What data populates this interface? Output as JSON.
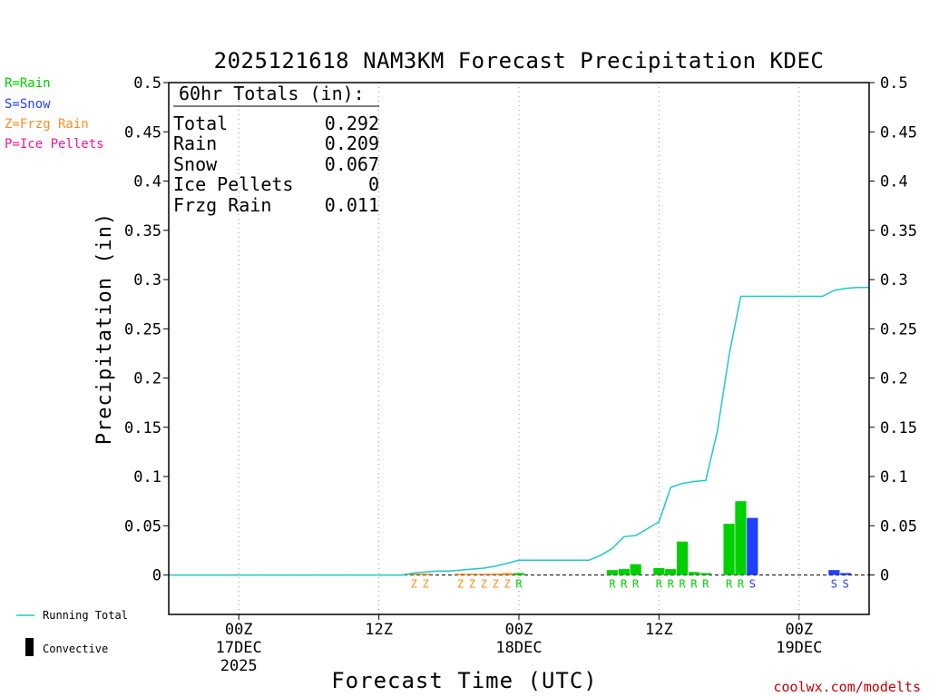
{
  "chart_data": {
    "type": "bar",
    "title": "2025121618 NAM3KM Forecast Precipitation KDEC",
    "xlabel": "Forecast Time (UTC)",
    "ylabel": "Precipitation (in)",
    "ylim": [
      -0.04,
      0.5
    ],
    "y_ticks": [
      "0",
      "0.05",
      "0.1",
      "0.15",
      "0.2",
      "0.25",
      "0.3",
      "0.35",
      "0.4",
      "0.45",
      "0.5"
    ],
    "x_ticks": [
      {
        "line1": "00Z",
        "line2": "17DEC",
        "line3": "2025"
      },
      {
        "line1": "12Z",
        "line2": "",
        "line3": ""
      },
      {
        "line1": "00Z",
        "line2": "18DEC",
        "line3": ""
      },
      {
        "line1": "12Z",
        "line2": "",
        "line3": ""
      },
      {
        "line1": "00Z",
        "line2": "19DEC",
        "line3": ""
      }
    ],
    "x_tick_hours": [
      6,
      18,
      30,
      42,
      54
    ],
    "x_range_hours": [
      0,
      60
    ],
    "series": [
      {
        "name": "Hourly precipitation",
        "hours": [
          21,
          22,
          25,
          26,
          27,
          28,
          29,
          30,
          38,
          39,
          40,
          42,
          43,
          44,
          45,
          46,
          48,
          49,
          50
        ],
        "values": [
          0.0005,
          0.0005,
          0.0008,
          0.001,
          0.0012,
          0.0015,
          0.002,
          0.002,
          0.005,
          0.006,
          0.011,
          0.007,
          0.006,
          0.034,
          0.003,
          0.002,
          0.052,
          0.075,
          0.058
        ],
        "types": [
          "Z",
          "Z",
          "Z",
          "Z",
          "Z",
          "Z",
          "Z",
          "R",
          "R",
          "R",
          "R",
          "R",
          "R",
          "R",
          "R",
          "R",
          "R",
          "R",
          "S"
        ]
      },
      {
        "name": "Hourly precipitation (late)",
        "hours": [
          57,
          58
        ],
        "values": [
          0.005,
          0.002
        ],
        "types": [
          "S",
          "S"
        ]
      },
      {
        "name": "Running Total",
        "hours": [
          0,
          1,
          2,
          3,
          4,
          5,
          6,
          7,
          8,
          9,
          10,
          11,
          12,
          13,
          14,
          15,
          16,
          17,
          18,
          19,
          20,
          21,
          22,
          23,
          24,
          25,
          26,
          27,
          28,
          29,
          30,
          31,
          32,
          33,
          34,
          35,
          36,
          37,
          38,
          39,
          40,
          41,
          42,
          43,
          44,
          45,
          46,
          47,
          48,
          49,
          50,
          51,
          52,
          53,
          54,
          55,
          56,
          57,
          58,
          59,
          60
        ],
        "values": [
          0,
          0,
          0,
          0,
          0,
          0,
          0,
          0,
          0,
          0,
          0,
          0,
          0,
          0,
          0,
          0,
          0,
          0,
          0,
          0,
          0,
          0.002,
          0.003,
          0.004,
          0.004,
          0.005,
          0.006,
          0.007,
          0.009,
          0.012,
          0.015,
          0.015,
          0.015,
          0.015,
          0.015,
          0.015,
          0.015,
          0.02,
          0.027,
          0.039,
          0.04,
          0.047,
          0.054,
          0.089,
          0.093,
          0.095,
          0.096,
          0.146,
          0.223,
          0.283,
          0.283,
          0.283,
          0.283,
          0.283,
          0.283,
          0.283,
          0.283,
          0.289,
          0.291,
          0.292,
          0.292
        ]
      }
    ],
    "type_labels": {
      "R": "R",
      "S": "S",
      "Z": "Z",
      "P": "P"
    },
    "colors": {
      "R": "#00d000",
      "S": "#2040ff",
      "Z": "#ff8c1a",
      "P": "#ff1493",
      "running_total": "#20c8c8",
      "convective": "#000000",
      "credit": "#cc0000"
    }
  },
  "legend": {
    "rain": "R=Rain",
    "snow": "S=Snow",
    "frzg_rain": "Z=Frzg Rain",
    "ice_pellets": "P=Ice Pellets",
    "running_total": "Running Total",
    "convective": "Convective"
  },
  "totals": {
    "header": "60hr Totals (in):",
    "rows": [
      {
        "label": "Total",
        "value": "0.292"
      },
      {
        "label": "Rain",
        "value": "0.209"
      },
      {
        "label": "Snow",
        "value": "0.067"
      },
      {
        "label": "Ice Pellets",
        "value": "0"
      },
      {
        "label": "Frzg Rain",
        "value": "0.011"
      }
    ]
  },
  "credit": "coolwx.com/modelts"
}
